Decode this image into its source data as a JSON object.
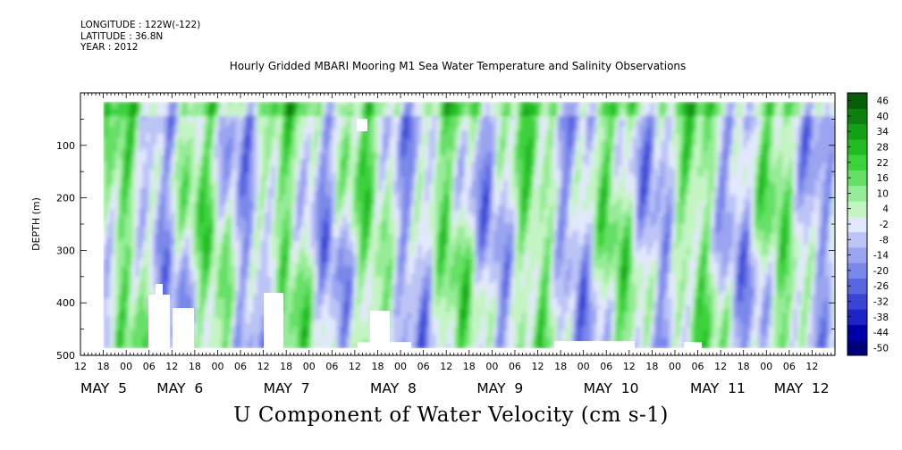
{
  "meta": {
    "longitude": "LONGITUDE : 122W(-122)",
    "latitude": "LATITUDE : 36.8N",
    "year": "YEAR : 2012"
  },
  "title": "Hourly Gridded MBARI Mooring M1 Sea Water Temperature and Salinity Observations",
  "footer": "U Component of Water Velocity (cm s-1)",
  "chart_data": {
    "type": "heatmap",
    "title": "Hourly Gridded MBARI Mooring M1 Sea Water Temperature and Salinity Observations",
    "variable": "U Component of Water Velocity (cm s-1)",
    "ylabel": "DEPTH (m)",
    "ylim": [
      500,
      0
    ],
    "xrange_hours": [
      0,
      198
    ],
    "data_start_hour": 6,
    "ytick_values": [
      100,
      200,
      300,
      400,
      500
    ],
    "ytick_labels": [
      "100",
      "200",
      "300",
      "400",
      "500"
    ],
    "xtick_labels": [
      "12",
      "18",
      "00",
      "06",
      "12",
      "18",
      "00",
      "06",
      "12",
      "18",
      "00",
      "06",
      "12",
      "18",
      "00",
      "06",
      "12",
      "18",
      "00",
      "06",
      "12",
      "18",
      "00",
      "06",
      "12",
      "18",
      "00",
      "06",
      "12",
      "18",
      "00",
      "06",
      "12"
    ],
    "day_labels": [
      "MAY  5",
      "MAY  6",
      "MAY  7",
      "MAY  8",
      "MAY  9",
      "MAY  10",
      "MAY  11",
      "MAY  12"
    ],
    "day_label_hours": [
      0,
      20,
      48,
      76,
      104,
      132,
      160,
      182
    ],
    "colorbar": {
      "levels": [
        -50,
        -44,
        -38,
        -32,
        -26,
        -20,
        -14,
        -8,
        -2,
        4,
        10,
        16,
        22,
        28,
        34,
        40,
        46
      ],
      "labels": [
        "46",
        "40",
        "34",
        "28",
        "22",
        "16",
        "10",
        "4",
        "-2",
        "-8",
        "-14",
        "-20",
        "-26",
        "-32",
        "-38",
        "-44",
        "-50"
      ],
      "colors": [
        "#00007a",
        "#0000a8",
        "#1c24c4",
        "#3a44d4",
        "#5a66e0",
        "#7a88ea",
        "#9aa4f0",
        "#bcc4f6",
        "#e2e8fb",
        "#c4f4c4",
        "#96ec96",
        "#66e066",
        "#3cd23c",
        "#22bc22",
        "#14a014",
        "#0c800c",
        "#065e06"
      ]
    },
    "grid": false,
    "legend": "right"
  }
}
